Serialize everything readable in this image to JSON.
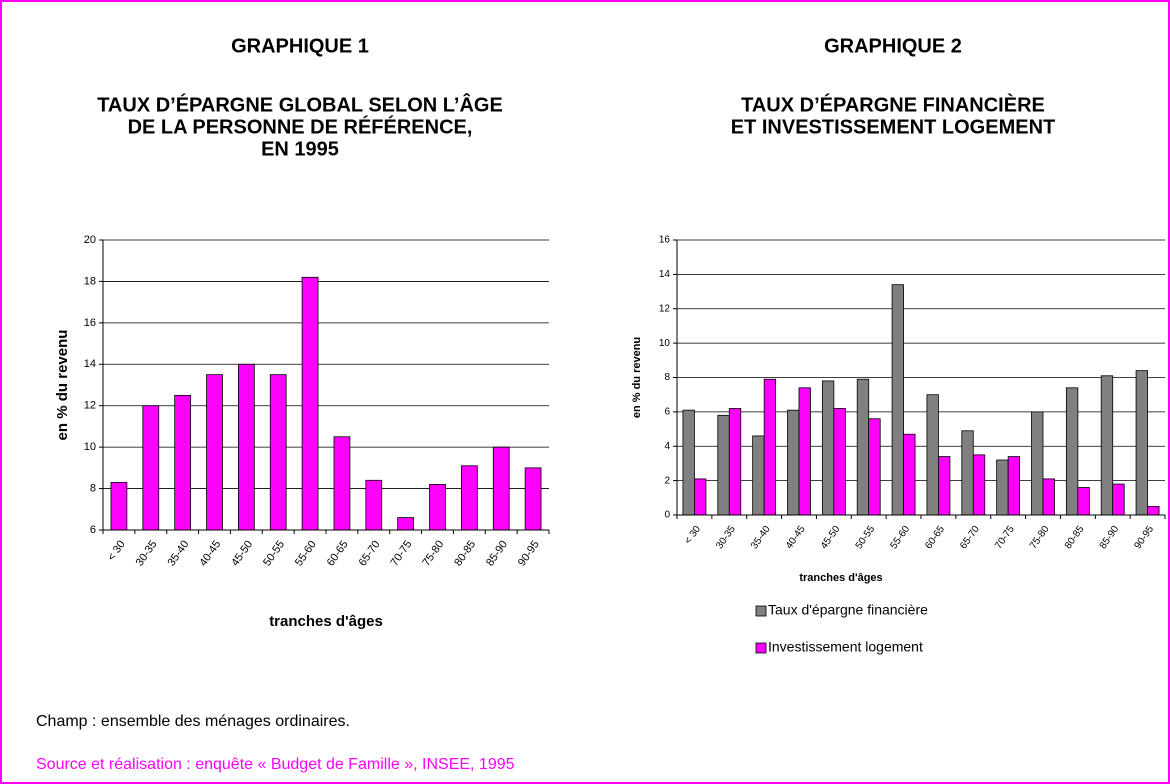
{
  "chart_data": [
    {
      "type": "bar",
      "heading": "GRAPHIQUE 1",
      "title": [
        "TAUX D’ÉPARGNE GLOBAL SELON L’ÂGE",
        "DE LA PERSONNE DE RÉFÉRENCE,",
        "EN 1995"
      ],
      "categories": [
        "< 30",
        "30-35",
        "35-40",
        "40-45",
        "45-50",
        "50-55",
        "55-60",
        "60-65",
        "65-70",
        "70-75",
        "75-80",
        "80-85",
        "85-90",
        "90-95"
      ],
      "values": [
        8.3,
        12,
        12.5,
        13.5,
        14,
        13.5,
        18.2,
        10.5,
        8.4,
        6.6,
        8.2,
        9.1,
        10,
        9
      ],
      "color": "#ff00ff",
      "ylim": [
        6,
        20
      ],
      "yticks": [
        6,
        8,
        10,
        12,
        14,
        16,
        18,
        20
      ],
      "grid": true,
      "ylabel": "en % du revenu",
      "xlabel": "tranches d'âges"
    },
    {
      "type": "bar",
      "heading": "GRAPHIQUE 2",
      "title": [
        "TAUX D’ÉPARGNE FINANCIÈRE",
        "ET INVESTISSEMENT LOGEMENT"
      ],
      "categories": [
        "< 30",
        "30-35",
        "35-40",
        "40-45",
        "45-50",
        "50-55",
        "55-60",
        "60-65",
        "65-70",
        "70-75",
        "75-80",
        "80-85",
        "85-90",
        "90-95"
      ],
      "series": [
        {
          "name": "Taux d'épargne financière",
          "color": "#808080",
          "values": [
            6.1,
            5.8,
            4.6,
            6.1,
            7.8,
            7.9,
            13.4,
            7.0,
            4.9,
            3.2,
            6.0,
            7.4,
            8.1,
            8.4
          ]
        },
        {
          "name": "Investissement logement",
          "color": "#ff00ff",
          "values": [
            2.1,
            6.2,
            7.9,
            7.4,
            6.2,
            5.6,
            4.7,
            3.4,
            3.5,
            3.4,
            2.1,
            1.6,
            1.8,
            0.5
          ]
        }
      ],
      "ylim": [
        0,
        16
      ],
      "yticks": [
        0,
        2,
        4,
        6,
        8,
        10,
        12,
        14,
        16
      ],
      "grid": true,
      "ylabel": "en % du revenu",
      "xlabel": "tranches d'âges",
      "legend": "bottom"
    }
  ],
  "notes": {
    "scope": "Champ : ensemble des ménages ordinaires.",
    "source": "Source et réalisation : enquête « Budget de Famille », INSEE, 1995"
  }
}
